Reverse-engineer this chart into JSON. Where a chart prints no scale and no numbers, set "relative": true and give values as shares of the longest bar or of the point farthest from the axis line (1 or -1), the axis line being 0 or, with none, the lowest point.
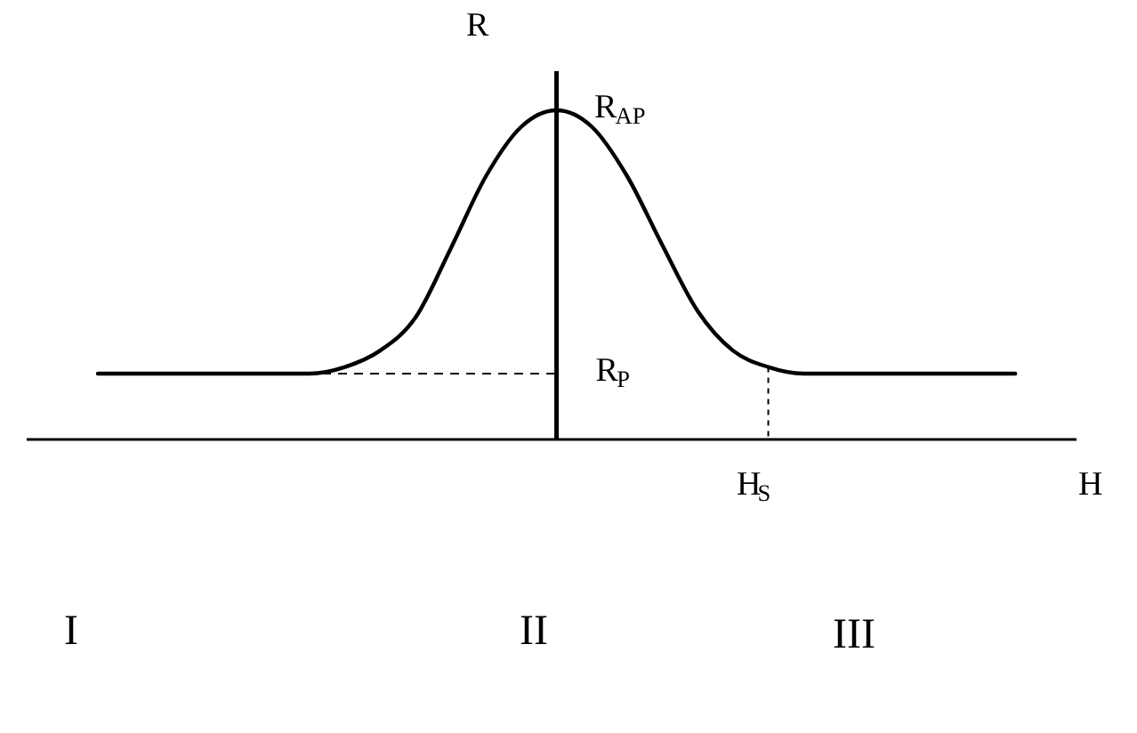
{
  "chart_data": {
    "type": "line",
    "relative": true,
    "categories": [
      null,
      null,
      null,
      null,
      null,
      null,
      null,
      null,
      null,
      null,
      null,
      null,
      null,
      null,
      null,
      null,
      null,
      null,
      null,
      null,
      null,
      null,
      null,
      null,
      null,
      null,
      null
    ],
    "series": [
      {
        "color": "#000000",
        "values": [
          0.2,
          0.2,
          0.2,
          0.2,
          0.2,
          0.2,
          0.2,
          0.22,
          0.27,
          0.37,
          0.58,
          0.8,
          0.95,
          1,
          0.95,
          0.8,
          0.59,
          0.39,
          0.27,
          0.22,
          0.2,
          0.2,
          0.2,
          0.2,
          0.2,
          0.2,
          0.2
        ]
      }
    ],
    "ref_lines": [
      {
        "axis": "y",
        "value": 0.2,
        "label": "R$_{P}$",
        "line_style": "dashed",
        "color": "#000000"
      }
    ],
    "annotations": [
      "R",
      "R$_{AP}$",
      "H$_{S}$",
      "H",
      "I",
      "II",
      "III"
    ],
    "line_style": "solid",
    "marker": "none"
  }
}
